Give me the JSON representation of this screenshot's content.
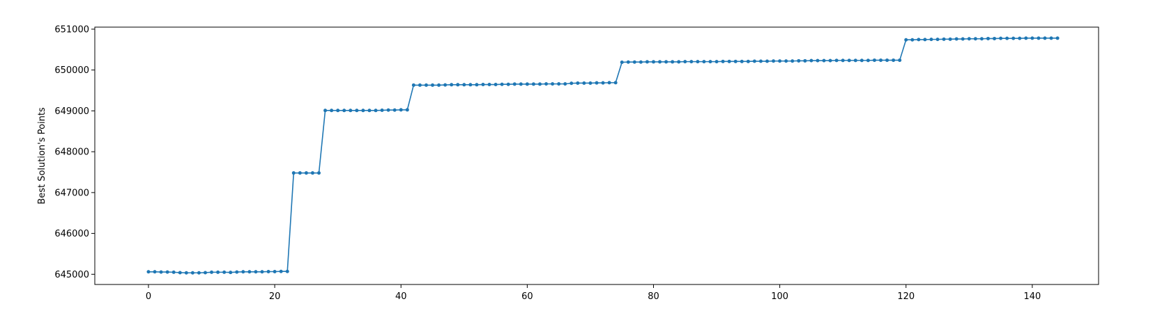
{
  "chart_data": {
    "type": "line",
    "title": "",
    "xlabel": "",
    "ylabel": "Best Solution's Points",
    "xlim": [
      -8.5,
      150.5
    ],
    "ylim": [
      644750,
      651050
    ],
    "xticks": [
      0,
      20,
      40,
      60,
      80,
      100,
      120,
      140
    ],
    "yticks": [
      645000,
      646000,
      647000,
      648000,
      649000,
      650000,
      651000
    ],
    "xtick_labels": [
      "0",
      "20",
      "40",
      "60",
      "80",
      "100",
      "120",
      "140"
    ],
    "ytick_labels": [
      "645000",
      "646000",
      "647000",
      "648000",
      "649000",
      "650000",
      "651000"
    ],
    "grid": false,
    "legend": "none",
    "colors": {
      "line": "#1f77b4"
    },
    "series": [
      {
        "marker": "circle",
        "x": [
          0,
          1,
          2,
          3,
          4,
          5,
          6,
          7,
          8,
          9,
          10,
          11,
          12,
          13,
          14,
          15,
          16,
          17,
          18,
          19,
          20,
          21,
          22,
          23,
          24,
          25,
          26,
          27,
          28,
          29,
          30,
          31,
          32,
          33,
          34,
          35,
          36,
          37,
          38,
          39,
          40,
          41,
          42,
          43,
          44,
          45,
          46,
          47,
          48,
          49,
          50,
          51,
          52,
          53,
          54,
          55,
          56,
          57,
          58,
          59,
          60,
          61,
          62,
          63,
          64,
          65,
          66,
          67,
          68,
          69,
          70,
          71,
          72,
          73,
          74,
          75,
          76,
          77,
          78,
          79,
          80,
          81,
          82,
          83,
          84,
          85,
          86,
          87,
          88,
          89,
          90,
          91,
          92,
          93,
          94,
          95,
          96,
          97,
          98,
          99,
          100,
          101,
          102,
          103,
          104,
          105,
          106,
          107,
          108,
          109,
          110,
          111,
          112,
          113,
          114,
          115,
          116,
          117,
          118,
          119,
          120,
          121,
          122,
          123,
          124,
          125,
          126,
          127,
          128,
          129,
          130,
          131,
          132,
          133,
          134,
          135,
          136,
          137,
          138,
          139,
          140,
          141,
          142,
          143,
          144
        ],
        "values": [
          645060,
          645060,
          645055,
          645055,
          645050,
          645040,
          645035,
          645035,
          645035,
          645040,
          645050,
          645050,
          645050,
          645045,
          645055,
          645060,
          645060,
          645060,
          645060,
          645065,
          645065,
          645070,
          645070,
          647480,
          647480,
          647480,
          647480,
          647480,
          649010,
          649010,
          649010,
          649010,
          649010,
          649010,
          649010,
          649010,
          649010,
          649015,
          649020,
          649020,
          649025,
          649025,
          649630,
          649630,
          649630,
          649630,
          649630,
          649635,
          649640,
          649640,
          649640,
          649640,
          649640,
          649645,
          649645,
          649645,
          649650,
          649650,
          649655,
          649655,
          649655,
          649655,
          649655,
          649660,
          649660,
          649660,
          649660,
          649675,
          649680,
          649680,
          649680,
          649685,
          649685,
          649690,
          649690,
          650190,
          650195,
          650195,
          650195,
          650200,
          650200,
          650200,
          650200,
          650200,
          650200,
          650205,
          650205,
          650205,
          650205,
          650205,
          650205,
          650210,
          650210,
          650210,
          650210,
          650210,
          650215,
          650215,
          650215,
          650220,
          650220,
          650220,
          650220,
          650225,
          650225,
          650230,
          650230,
          650230,
          650230,
          650235,
          650235,
          650235,
          650235,
          650235,
          650235,
          650240,
          650240,
          650240,
          650240,
          650240,
          650740,
          650740,
          650745,
          650745,
          650750,
          650750,
          650755,
          650755,
          650760,
          650760,
          650765,
          650765,
          650765,
          650770,
          650770,
          650775,
          650775,
          650775,
          650775,
          650780,
          650780,
          650780,
          650780,
          650780,
          650780
        ]
      }
    ]
  }
}
